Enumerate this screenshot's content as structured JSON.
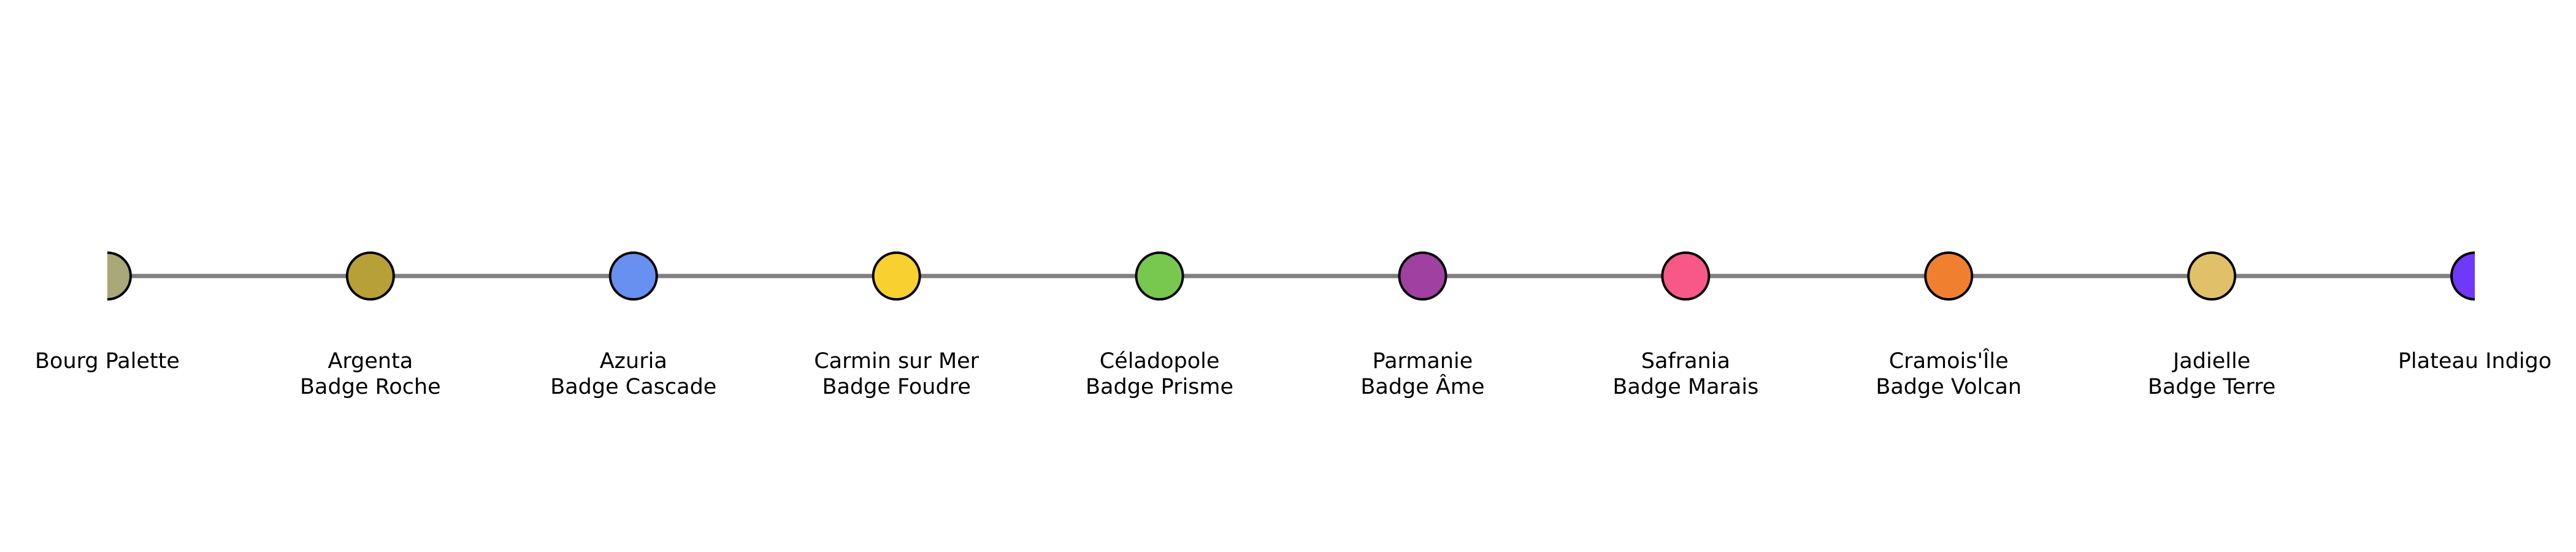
{
  "route": {
    "line_color": "#808080",
    "stops": [
      {
        "name": "Bourg Palette",
        "badge": "",
        "color": "#A8A878"
      },
      {
        "name": "Argenta",
        "badge": "Badge Roche",
        "color": "#B8A038"
      },
      {
        "name": "Azuria",
        "badge": "Badge Cascade",
        "color": "#6890F0"
      },
      {
        "name": "Carmin sur Mer",
        "badge": "Badge Foudre",
        "color": "#F8D030"
      },
      {
        "name": "Céladopole",
        "badge": "Badge Prisme",
        "color": "#78C850"
      },
      {
        "name": "Parmanie",
        "badge": "Badge Âme",
        "color": "#A040A0"
      },
      {
        "name": "Safrania",
        "badge": "Badge Marais",
        "color": "#F85888"
      },
      {
        "name": "Cramois'Île",
        "badge": "Badge Volcan",
        "color": "#F08030"
      },
      {
        "name": "Jadielle",
        "badge": "Badge Terre",
        "color": "#E0C068"
      },
      {
        "name": "Plateau Indigo",
        "badge": "",
        "color": "#7038F8"
      }
    ]
  }
}
